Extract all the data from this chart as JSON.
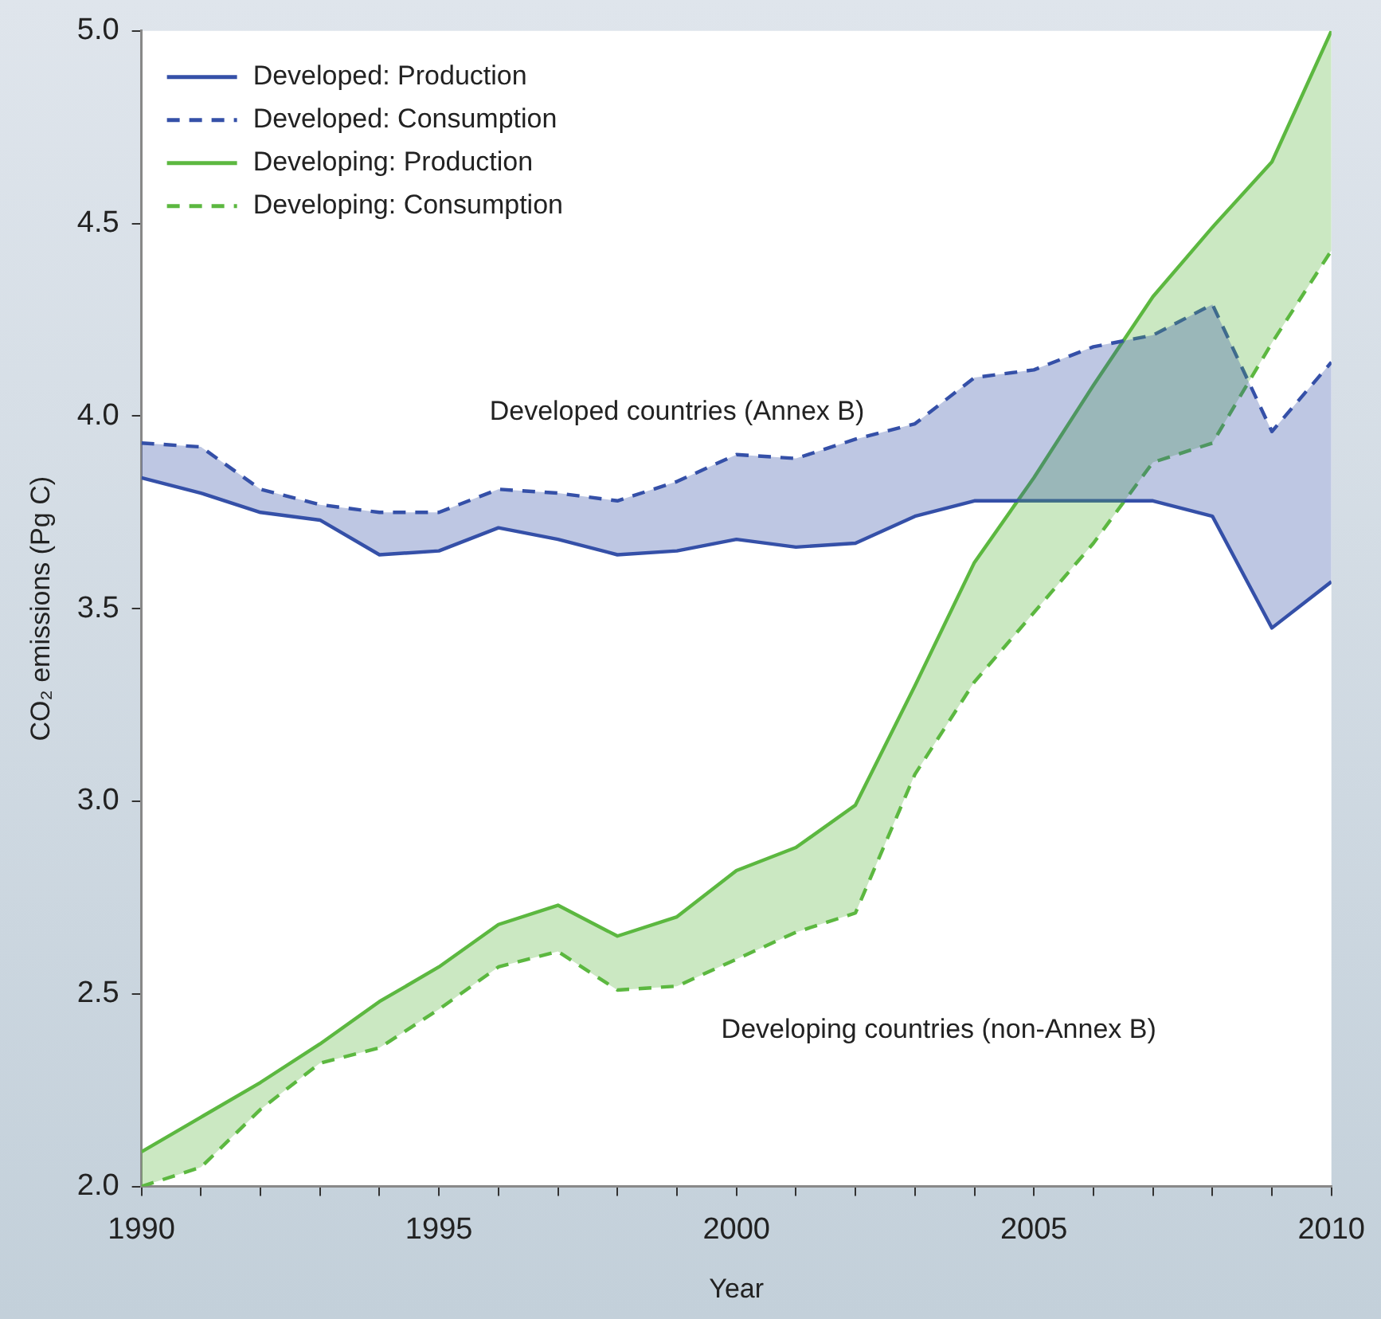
{
  "chart_data": {
    "type": "line",
    "xlabel": "Year",
    "ylabel": "CO₂ emissions (Pg C)",
    "x": [
      1990,
      1991,
      1992,
      1993,
      1994,
      1995,
      1996,
      1997,
      1998,
      1999,
      2000,
      2001,
      2002,
      2003,
      2004,
      2005,
      2006,
      2007,
      2008,
      2009,
      2010
    ],
    "series": [
      {
        "name": "Developed: Production",
        "color": "#3550a8",
        "line_style": "solid",
        "values": [
          3.84,
          3.8,
          3.75,
          3.73,
          3.64,
          3.65,
          3.71,
          3.68,
          3.64,
          3.65,
          3.68,
          3.66,
          3.67,
          3.74,
          3.78,
          3.78,
          3.78,
          3.78,
          3.74,
          3.45,
          3.57
        ],
        "lower": [
          3.84,
          3.8,
          3.75,
          3.73,
          3.64,
          3.65,
          3.71,
          3.68,
          3.64,
          3.65,
          3.68,
          3.66,
          3.67,
          3.74,
          3.78,
          3.78,
          3.78,
          3.78,
          3.74,
          3.45,
          3.57
        ],
        "upper": [
          3.93,
          3.92,
          3.81,
          3.77,
          3.75,
          3.75,
          3.81,
          3.8,
          3.78,
          3.83,
          3.9,
          3.89,
          3.94,
          3.98,
          4.1,
          4.12,
          4.18,
          4.21,
          4.29,
          3.96,
          4.14
        ]
      },
      {
        "name": "Developed: Consumption",
        "color": "#3550a8",
        "line_style": "dashed",
        "values": [
          3.93,
          3.92,
          3.81,
          3.77,
          3.75,
          3.75,
          3.81,
          3.8,
          3.78,
          3.83,
          3.9,
          3.89,
          3.94,
          3.98,
          4.1,
          4.12,
          4.18,
          4.21,
          4.29,
          3.96,
          4.14
        ]
      },
      {
        "name": "Developing: Production",
        "color": "#5cb840",
        "line_style": "solid",
        "values": [
          2.09,
          2.18,
          2.27,
          2.37,
          2.48,
          2.57,
          2.68,
          2.73,
          2.65,
          2.7,
          2.82,
          2.88,
          2.99,
          3.3,
          3.62,
          3.84,
          4.08,
          4.31,
          4.49,
          4.66,
          5.0
        ],
        "lower": [
          2.0,
          2.05,
          2.2,
          2.32,
          2.36,
          2.46,
          2.57,
          2.61,
          2.51,
          2.52,
          2.59,
          2.66,
          2.71,
          3.07,
          3.31,
          3.49,
          3.67,
          3.88,
          3.93,
          4.19,
          4.43
        ],
        "upper": [
          2.09,
          2.18,
          2.27,
          2.37,
          2.48,
          2.57,
          2.68,
          2.73,
          2.65,
          2.7,
          2.82,
          2.88,
          2.99,
          3.3,
          3.62,
          3.84,
          4.08,
          4.31,
          4.49,
          4.66,
          5.0
        ]
      },
      {
        "name": "Developing: Consumption",
        "color": "#5cb840",
        "line_style": "dashed",
        "values": [
          2.0,
          2.05,
          2.2,
          2.32,
          2.36,
          2.46,
          2.57,
          2.61,
          2.51,
          2.52,
          2.59,
          2.66,
          2.71,
          3.07,
          3.31,
          3.49,
          3.67,
          3.88,
          3.93,
          4.19,
          4.43
        ]
      }
    ],
    "xlim": [
      1990,
      2010
    ],
    "xticks": [
      1990,
      {
        "value": 1991,
        "label": null
      },
      {
        "value": 1992,
        "label": null
      },
      {
        "value": 1993,
        "label": null
      },
      {
        "value": 1994,
        "label": null
      },
      1995,
      {
        "value": 1996,
        "label": null
      },
      {
        "value": 1997,
        "label": null
      },
      {
        "value": 1998,
        "label": null
      },
      {
        "value": 1999,
        "label": null
      },
      2000,
      {
        "value": 2001,
        "label": null
      },
      {
        "value": 2002,
        "label": null
      },
      {
        "value": 2003,
        "label": null
      },
      {
        "value": 2004,
        "label": null
      },
      2005,
      {
        "value": 2006,
        "label": null
      },
      {
        "value": 2007,
        "label": null
      },
      {
        "value": 2008,
        "label": null
      },
      {
        "value": 2009,
        "label": null
      },
      2010
    ],
    "ylim": [
      2,
      5
    ],
    "yticks": [
      {
        "value": 2,
        "label": "2.0"
      },
      {
        "value": 2.5,
        "label": "2.5"
      },
      {
        "value": 3,
        "label": "3.0"
      },
      {
        "value": 3.5,
        "label": "3.5"
      },
      {
        "value": 4,
        "label": "4.0"
      },
      {
        "value": 4.5,
        "label": "4.5"
      },
      {
        "value": 5,
        "label": "5.0"
      }
    ],
    "annotations": [
      "Developed countries (Annex B)",
      "Developing countries (non-Annex B)"
    ],
    "legend": "top left",
    "grid": false,
    "marker": "none"
  }
}
